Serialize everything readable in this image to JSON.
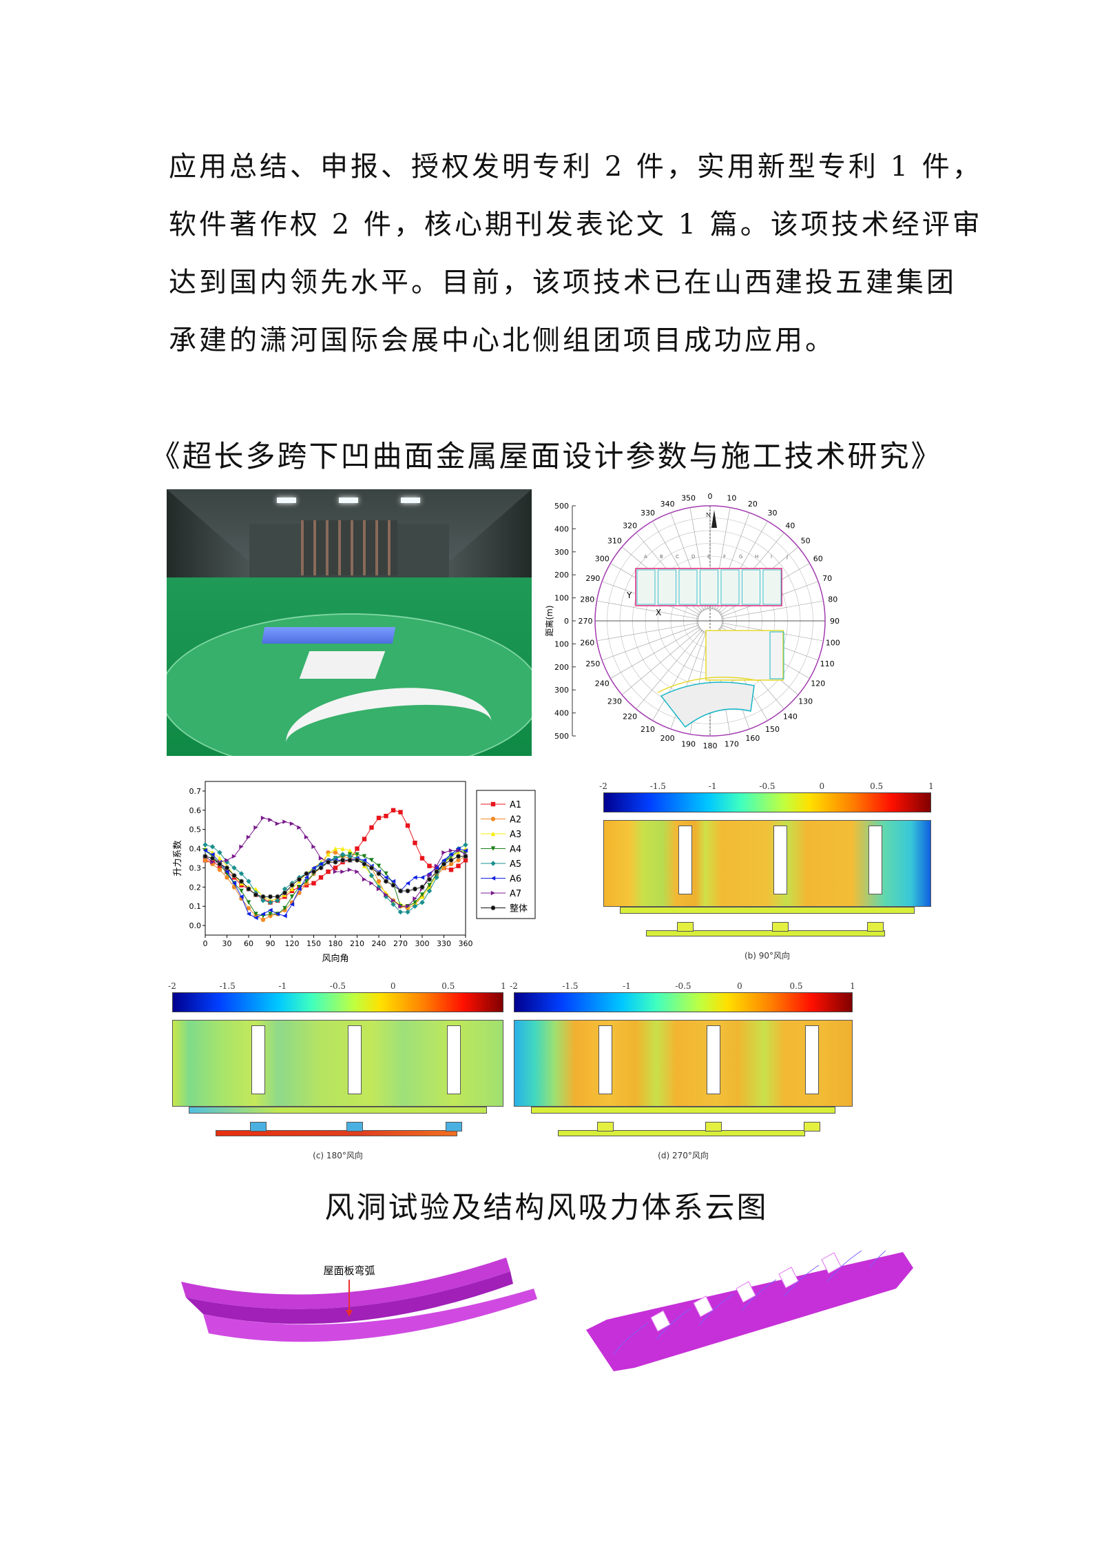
{
  "paragraph": {
    "lines": [
      "应用总结、申报、授权发明专利 2 件，实用新型专利 1 件，",
      "软件著作权 2 件，核心期刊发表论文 1 篇。该项技术经评审",
      "达到国内领先水平。目前，该项技术已在山西建投五建集团",
      "承建的潇河国际会展中心北侧组团项目成功应用。"
    ]
  },
  "section_title": "《超长多跨下凹曲面金属屋面设计参数与施工技术研究》",
  "polar_map": {
    "ylabel": "距离(m)",
    "yticks": [
      "500",
      "400",
      "300",
      "200",
      "100",
      "0",
      "100",
      "200",
      "300",
      "400",
      "500"
    ],
    "angle_labels": [
      "0",
      "10",
      "20",
      "30",
      "40",
      "50",
      "60",
      "70",
      "80",
      "90",
      "100",
      "110",
      "120",
      "130",
      "140",
      "150",
      "160",
      "170",
      "180",
      "190",
      "200",
      "210",
      "220",
      "230",
      "240",
      "250",
      "260",
      "270",
      "280",
      "290",
      "300",
      "310",
      "320",
      "330",
      "340",
      "350"
    ],
    "grid_letters": [
      "A",
      "B",
      "C",
      "D",
      "E",
      "F",
      "G",
      "H",
      "I",
      "J"
    ],
    "axis_x": "X",
    "axis_y": "Y",
    "north": "N"
  },
  "chart_data": {
    "type": "line",
    "xlabel": "风向角",
    "ylabel": "升力系数",
    "xlim": [
      0,
      360
    ],
    "ylim": [
      -0.05,
      0.75
    ],
    "xticks": [
      0,
      30,
      60,
      90,
      120,
      150,
      180,
      210,
      240,
      270,
      300,
      330,
      360
    ],
    "yticks": [
      0.0,
      0.1,
      0.2,
      0.3,
      0.4,
      0.5,
      0.6,
      0.7
    ],
    "grid": false,
    "legend_position": "right",
    "x": [
      0,
      10,
      20,
      30,
      40,
      50,
      60,
      70,
      80,
      90,
      100,
      110,
      120,
      130,
      140,
      150,
      160,
      170,
      180,
      190,
      200,
      210,
      220,
      230,
      240,
      250,
      260,
      270,
      280,
      290,
      300,
      310,
      320,
      330,
      340,
      350,
      360
    ],
    "series": [
      {
        "name": "A1",
        "color": "#e8141b",
        "marker": "square",
        "values": [
          0.34,
          0.33,
          0.31,
          0.28,
          0.25,
          0.21,
          0.19,
          0.16,
          0.14,
          0.12,
          0.13,
          0.15,
          0.18,
          0.2,
          0.21,
          0.22,
          0.25,
          0.28,
          0.3,
          0.33,
          0.34,
          0.4,
          0.45,
          0.51,
          0.56,
          0.57,
          0.6,
          0.59,
          0.52,
          0.43,
          0.35,
          0.31,
          0.3,
          0.3,
          0.29,
          0.31,
          0.34
        ]
      },
      {
        "name": "A2",
        "color": "#f08a24",
        "marker": "circle",
        "values": [
          0.34,
          0.32,
          0.29,
          0.25,
          0.2,
          0.14,
          0.09,
          0.05,
          0.03,
          0.05,
          0.06,
          0.08,
          0.12,
          0.17,
          0.22,
          0.27,
          0.3,
          0.38,
          0.38,
          0.36,
          0.35,
          0.34,
          0.33,
          0.3,
          0.23,
          0.16,
          0.13,
          0.1,
          0.09,
          0.11,
          0.15,
          0.2,
          0.26,
          0.3,
          0.32,
          0.34,
          0.36
        ]
      },
      {
        "name": "A3",
        "color": "#f5ec00",
        "marker": "triangle-up",
        "values": [
          0.4,
          0.38,
          0.35,
          0.31,
          0.26,
          0.22,
          0.2,
          0.19,
          0.15,
          0.13,
          0.14,
          0.16,
          0.19,
          0.23,
          0.27,
          0.3,
          0.33,
          0.37,
          0.4,
          0.4,
          0.39,
          0.36,
          0.31,
          0.26,
          0.21,
          0.17,
          0.13,
          0.11,
          0.1,
          0.12,
          0.15,
          0.2,
          0.26,
          0.32,
          0.36,
          0.38,
          0.4
        ]
      },
      {
        "name": "A4",
        "color": "#1a7f1a",
        "marker": "triangle-down",
        "values": [
          0.39,
          0.36,
          0.32,
          0.27,
          0.22,
          0.18,
          0.12,
          0.06,
          0.05,
          0.06,
          0.06,
          0.09,
          0.15,
          0.2,
          0.23,
          0.27,
          0.31,
          0.33,
          0.35,
          0.36,
          0.37,
          0.37,
          0.36,
          0.34,
          0.31,
          0.27,
          0.22,
          0.1,
          0.1,
          0.12,
          0.16,
          0.21,
          0.27,
          0.33,
          0.36,
          0.39,
          0.38
        ]
      },
      {
        "name": "A5",
        "color": "#1b8f8f",
        "marker": "diamond",
        "values": [
          0.42,
          0.41,
          0.38,
          0.33,
          0.3,
          0.27,
          0.23,
          0.17,
          0.13,
          0.12,
          0.13,
          0.19,
          0.22,
          0.25,
          0.27,
          0.29,
          0.32,
          0.34,
          0.35,
          0.37,
          0.36,
          0.35,
          0.33,
          0.26,
          0.2,
          0.15,
          0.11,
          0.07,
          0.07,
          0.1,
          0.12,
          0.18,
          0.25,
          0.33,
          0.37,
          0.4,
          0.42
        ]
      },
      {
        "name": "A6",
        "color": "#1020e0",
        "marker": "triangle-left",
        "values": [
          0.39,
          0.37,
          0.33,
          0.28,
          0.22,
          0.15,
          0.06,
          0.04,
          0.06,
          0.08,
          0.06,
          0.05,
          0.11,
          0.19,
          0.25,
          0.3,
          0.32,
          0.34,
          0.34,
          0.34,
          0.34,
          0.35,
          0.34,
          0.31,
          0.28,
          0.25,
          0.23,
          0.18,
          0.22,
          0.25,
          0.25,
          0.27,
          0.3,
          0.34,
          0.37,
          0.4,
          0.39
        ]
      },
      {
        "name": "A7",
        "color": "#7a1a8c",
        "marker": "triangle-right",
        "values": [
          0.36,
          0.33,
          0.33,
          0.34,
          0.36,
          0.41,
          0.46,
          0.51,
          0.56,
          0.55,
          0.53,
          0.54,
          0.53,
          0.51,
          0.46,
          0.41,
          0.35,
          0.33,
          0.28,
          0.28,
          0.29,
          0.28,
          0.24,
          0.22,
          0.19,
          0.16,
          0.13,
          0.1,
          0.1,
          0.14,
          0.19,
          0.26,
          0.31,
          0.38,
          0.39,
          0.39,
          0.37
        ]
      },
      {
        "name": "整体",
        "color": "#111111",
        "marker": "circle",
        "values": [
          0.36,
          0.35,
          0.32,
          0.3,
          0.26,
          0.23,
          0.19,
          0.16,
          0.15,
          0.15,
          0.15,
          0.17,
          0.21,
          0.24,
          0.27,
          0.28,
          0.3,
          0.33,
          0.33,
          0.34,
          0.34,
          0.34,
          0.32,
          0.3,
          0.27,
          0.23,
          0.21,
          0.18,
          0.18,
          0.19,
          0.2,
          0.24,
          0.28,
          0.32,
          0.34,
          0.36,
          0.36
        ]
      }
    ]
  },
  "contour_maps": {
    "colorbar_labels": [
      "-2",
      "-1.5",
      "-1",
      "-0.5",
      "0",
      "0.5",
      "1"
    ],
    "colorbar_range": [
      -2,
      1
    ],
    "panels": [
      {
        "id": "b",
        "caption": "(b) 90°风向"
      },
      {
        "id": "c",
        "caption": "(c) 180°风向"
      },
      {
        "id": "d",
        "caption": "(d) 270°风向"
      }
    ]
  },
  "figure_caption": "风洞试验及结构风吸力体系云图",
  "roof_model": {
    "annotation": "屋面板弯弧"
  },
  "colors": {
    "roof_magenta": "#cc33dd",
    "annotation_red": "#e83030"
  }
}
